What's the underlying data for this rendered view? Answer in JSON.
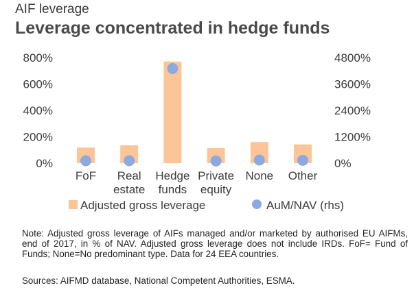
{
  "header": {
    "kicker": "AIF leverage",
    "title": "Leverage concentrated in hedge funds"
  },
  "chart_data": {
    "type": "bar",
    "categories": [
      [
        "FoF"
      ],
      [
        "Real",
        "estate"
      ],
      [
        "Hedge",
        "funds"
      ],
      [
        "Private",
        "equity"
      ],
      [
        "None"
      ],
      [
        "Other"
      ]
    ],
    "series": [
      {
        "name": "Adjusted gross leverage",
        "kind": "bar",
        "axis": "left",
        "color": "#fbc598",
        "values": [
          118,
          135,
          770,
          115,
          160,
          142
        ]
      },
      {
        "name": "AuM/NAV (rhs)",
        "kind": "scatter",
        "axis": "right",
        "color": "#8ea9e0",
        "values": [
          110,
          110,
          4300,
          100,
          140,
          130
        ]
      }
    ],
    "y_left": {
      "min": 0,
      "max": 800,
      "ticks": [
        0,
        200,
        400,
        600,
        800
      ],
      "tick_labels": [
        "0%",
        "200%",
        "400%",
        "600%",
        "800%"
      ]
    },
    "y_right": {
      "min": 0,
      "max": 4800,
      "ticks": [
        0,
        1200,
        2400,
        3600,
        4800
      ],
      "tick_labels": [
        "0%",
        "1200%",
        "2400%",
        "3600%",
        "4800%"
      ]
    },
    "grid": false,
    "legend_position": "bottom"
  },
  "footer": {
    "note": "Note: Adjusted gross leverage of AIFs managed and/or marketed by authorised EU AIFMs, end of 2017, in % of NAV. Adjusted gross leverage does not include IRDs. FoF= Fund of Funds; None=No predominant type. Data for 24 EEA countries.",
    "source": "Sources: AIFMD database, National Competent Authorities, ESMA."
  }
}
